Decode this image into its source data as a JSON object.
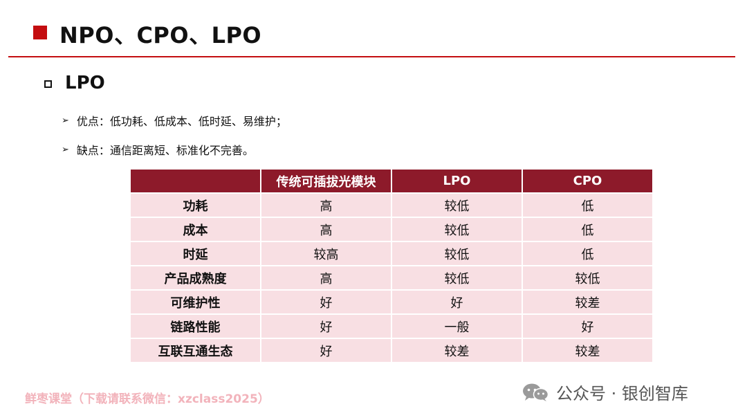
{
  "title": "NPO、CPO、LPO",
  "subtitle": "LPO",
  "bullets": [
    {
      "arrow": "➢",
      "text": "优点：低功耗、低成本、低时延、易维护；"
    },
    {
      "arrow": "➢",
      "text": "缺点：通信距离短、标准化不完善。"
    }
  ],
  "table": {
    "headers": [
      "",
      "传统可插拔光模块",
      "LPO",
      "CPO"
    ],
    "rows": [
      [
        "功耗",
        "高",
        "较低",
        "低"
      ],
      [
        "成本",
        "高",
        "较低",
        "低"
      ],
      [
        "时延",
        "较高",
        "较低",
        "低"
      ],
      [
        "产品成熟度",
        "高",
        "较低",
        "较低"
      ],
      [
        "可维护性",
        "好",
        "好",
        "较差"
      ],
      [
        "链路性能",
        "好",
        "一般",
        "好"
      ],
      [
        "互联互通生态",
        "好",
        "较差",
        "较差"
      ]
    ]
  },
  "watermark_left": "鲜枣课堂（下载请联系微信：xzclass2025）",
  "watermark_right": "公众号 · 银创智库",
  "colors": {
    "accent": "#c40d10",
    "header_bg": "#8d1a2a",
    "cell_bg": "#f8dfe3"
  },
  "icons": {
    "wechat": "wechat-icon"
  }
}
